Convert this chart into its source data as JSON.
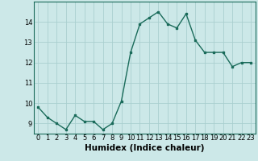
{
  "x": [
    0,
    1,
    2,
    3,
    4,
    5,
    6,
    7,
    8,
    9,
    10,
    11,
    12,
    13,
    14,
    15,
    16,
    17,
    18,
    19,
    20,
    21,
    22,
    23
  ],
  "y": [
    9.8,
    9.3,
    9.0,
    8.7,
    9.4,
    9.1,
    9.1,
    8.7,
    9.0,
    10.1,
    12.5,
    13.9,
    14.2,
    14.5,
    13.9,
    13.7,
    14.4,
    13.1,
    12.5,
    12.5,
    12.5,
    11.8,
    12.0,
    12.0
  ],
  "line_color": "#1a6b5a",
  "bg_color": "#cce8e8",
  "grid_color": "#aacfcf",
  "xlabel": "Humidex (Indice chaleur)",
  "xlim": [
    -0.5,
    23.5
  ],
  "ylim": [
    8.5,
    15.0
  ],
  "yticks": [
    9,
    10,
    11,
    12,
    13,
    14
  ],
  "xticks": [
    0,
    1,
    2,
    3,
    4,
    5,
    6,
    7,
    8,
    9,
    10,
    11,
    12,
    13,
    14,
    15,
    16,
    17,
    18,
    19,
    20,
    21,
    22,
    23
  ],
  "marker": "s",
  "marker_size": 2.0,
  "line_width": 1.0,
  "xlabel_fontsize": 7.5,
  "tick_fontsize": 6.0
}
